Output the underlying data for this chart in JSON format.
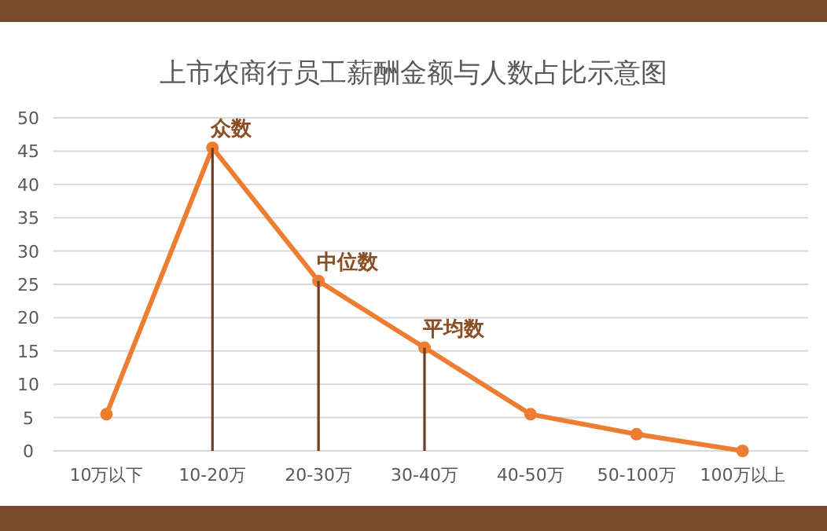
{
  "chart_data": {
    "type": "line",
    "title": "上市农商行员工薪酬金额与人数占比示意图",
    "categories": [
      "10万以下",
      "10-20万",
      "20-30万",
      "30-40万",
      "40-50万",
      "50-100万",
      "100万以上"
    ],
    "series": [
      {
        "type": "bar",
        "color": "#6b3e26",
        "values": [
          null,
          45.5,
          25.5,
          15.5,
          null,
          null,
          null
        ]
      },
      {
        "color": "#ed7d31",
        "values": [
          5.5,
          45.5,
          25.5,
          15.5,
          5.5,
          2.5,
          0
        ]
      }
    ],
    "ylim": [
      0,
      50
    ],
    "yticks": [
      0,
      5,
      10,
      15,
      20,
      25,
      30,
      35,
      40,
      45,
      50
    ],
    "grid": "y",
    "marker": "circle",
    "annotations": [
      {
        "text": "众数",
        "x": "10-20万",
        "y": 45.5
      },
      {
        "text": "中位数",
        "x": "20-30万",
        "y": 25.5
      },
      {
        "text": "平均数",
        "x": "30-40万",
        "y": 15.5
      }
    ]
  }
}
